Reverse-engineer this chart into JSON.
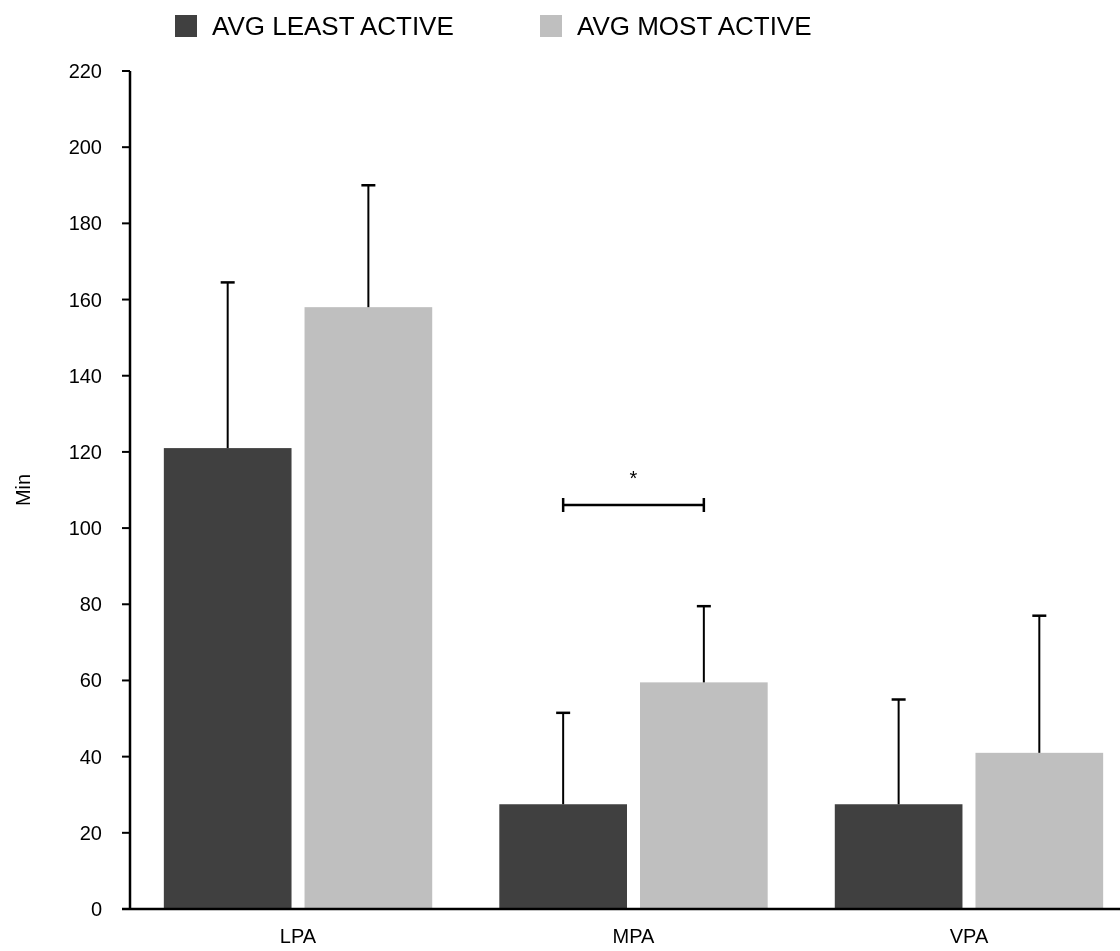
{
  "chart_data": {
    "type": "bar",
    "ylabel": "Min",
    "categories": [
      "LPA",
      "MPA",
      "VPA"
    ],
    "series": [
      {
        "name": "AVG LEAST ACTIVE",
        "color": "#404040",
        "values": [
          121,
          27.5,
          27.5
        ],
        "errors": [
          [
            121,
            164.5
          ],
          [
            27.5,
            51.5
          ],
          [
            27.5,
            55
          ]
        ]
      },
      {
        "name": "AVG MOST ACTIVE",
        "color": "#bfbfbf",
        "values": [
          158,
          59.5,
          41
        ],
        "errors": [
          [
            158,
            190
          ],
          [
            59.5,
            79.5
          ],
          [
            41,
            77
          ]
        ]
      }
    ],
    "ylim": [
      0,
      220
    ],
    "yticks": [
      0,
      20,
      40,
      60,
      80,
      100,
      120,
      140,
      160,
      180,
      200,
      220
    ],
    "grid": false,
    "legend": "top",
    "annotations": [
      "*"
    ]
  }
}
